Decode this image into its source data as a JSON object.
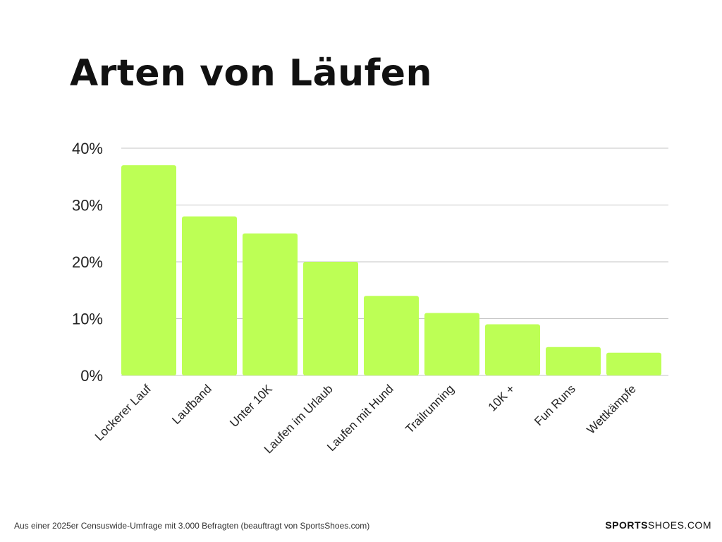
{
  "chart_data": {
    "type": "bar",
    "title": "Arten von Läufen",
    "categories": [
      "Lockerer Lauf",
      "Laufband",
      "Unter 10K",
      "Laufen im Urlaub",
      "Laufen mit Hund",
      "Trailrunning",
      "10K +",
      "Fun Runs",
      "Wettkämpfe"
    ],
    "values": [
      37,
      28,
      25,
      20,
      14,
      11,
      9,
      5,
      4
    ],
    "unit": "%",
    "ylim": [
      0,
      40
    ],
    "yticks": [
      "0%",
      "10%",
      "20%",
      "30%",
      "40%"
    ],
    "grid": true,
    "bar_color": "#bdff55",
    "xlabel": "",
    "ylabel": ""
  },
  "footnote": "Aus einer 2025er Censuswide-Umfrage mit 3.000 Befragten (beauftragt von SportsShoes.com)",
  "brand": {
    "bold": "SPORTS",
    "regular": "SHOES.COM"
  }
}
